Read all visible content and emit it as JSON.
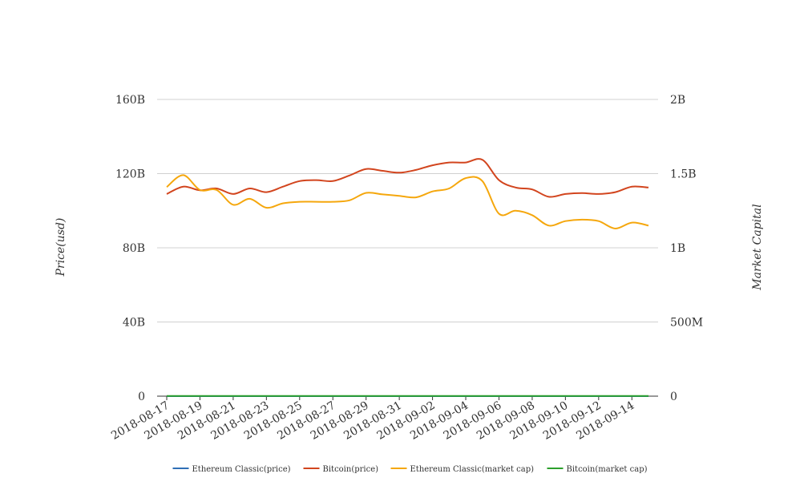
{
  "chart_data": {
    "type": "line",
    "ylabel": "Price(usd)",
    "y2label": "Market Capital",
    "y_ticks": [
      "0",
      "40B",
      "80B",
      "120B",
      "160B"
    ],
    "y_tick_values": [
      0,
      40,
      80,
      120,
      160
    ],
    "y2_ticks": [
      "0",
      "500M",
      "1B",
      "1.5B",
      "2B"
    ],
    "ylim": [
      0,
      160
    ],
    "y2lim": [
      0,
      2
    ],
    "y_unit": "B",
    "y2_unit": "B",
    "grid": true,
    "legend_position": "bottom",
    "x_tick_labels": [
      "2018-08-17",
      "2018-08-19",
      "2018-08-21",
      "2018-08-23",
      "2018-08-25",
      "2018-08-27",
      "2018-08-29",
      "2018-08-31",
      "2018-09-02",
      "2018-09-04",
      "2018-09-06",
      "2018-09-08",
      "2018-09-10",
      "2018-09-12",
      "2018-09-14"
    ],
    "x": [
      "2018-08-17",
      "2018-08-18",
      "2018-08-19",
      "2018-08-20",
      "2018-08-21",
      "2018-08-22",
      "2018-08-23",
      "2018-08-24",
      "2018-08-25",
      "2018-08-26",
      "2018-08-27",
      "2018-08-28",
      "2018-08-29",
      "2018-08-30",
      "2018-08-31",
      "2018-09-01",
      "2018-09-02",
      "2018-09-03",
      "2018-09-04",
      "2018-09-05",
      "2018-09-06",
      "2018-09-07",
      "2018-09-08",
      "2018-09-09",
      "2018-09-10",
      "2018-09-11",
      "2018-09-12",
      "2018-09-13",
      "2018-09-14",
      "2018-09-15"
    ],
    "series": [
      {
        "name": "Ethereum Classic(price)",
        "axis": "left",
        "color": "#2f6fb6",
        "values": [
          0.01,
          0.01,
          0.01,
          0.01,
          0.01,
          0.01,
          0.01,
          0.01,
          0.01,
          0.01,
          0.01,
          0.01,
          0.01,
          0.01,
          0.01,
          0.01,
          0.01,
          0.01,
          0.01,
          0.01,
          0.01,
          0.01,
          0.01,
          0.01,
          0.01,
          0.01,
          0.01,
          0.01,
          0.01,
          0.01
        ]
      },
      {
        "name": "Bitcoin(price)",
        "axis": "left",
        "color": "#d2451e",
        "values": [
          109,
          113,
          111,
          112,
          109,
          112,
          110,
          113,
          116,
          116.5,
          116,
          119,
          122.5,
          121.5,
          120.5,
          122,
          124.5,
          126,
          126,
          127.5,
          116.5,
          112.5,
          111.5,
          107.5,
          109,
          109.5,
          109,
          110,
          113,
          112.5
        ]
      },
      {
        "name": "Ethereum Classic(market cap)",
        "axis": "right",
        "color": "#f5a70d",
        "values": [
          1.41,
          1.49,
          1.39,
          1.39,
          1.29,
          1.33,
          1.27,
          1.3,
          1.31,
          1.31,
          1.31,
          1.32,
          1.37,
          1.36,
          1.35,
          1.34,
          1.38,
          1.4,
          1.47,
          1.45,
          1.23,
          1.25,
          1.22,
          1.15,
          1.18,
          1.19,
          1.18,
          1.13,
          1.17,
          1.15
        ]
      },
      {
        "name": "Bitcoin(market cap)",
        "axis": "right",
        "color": "#2ca02c",
        "values": [
          0.001,
          0.001,
          0.001,
          0.001,
          0.001,
          0.001,
          0.001,
          0.001,
          0.001,
          0.001,
          0.001,
          0.001,
          0.001,
          0.001,
          0.001,
          0.001,
          0.001,
          0.001,
          0.001,
          0.001,
          0.001,
          0.001,
          0.001,
          0.001,
          0.001,
          0.001,
          0.001,
          0.001,
          0.001,
          0.001
        ]
      }
    ]
  }
}
